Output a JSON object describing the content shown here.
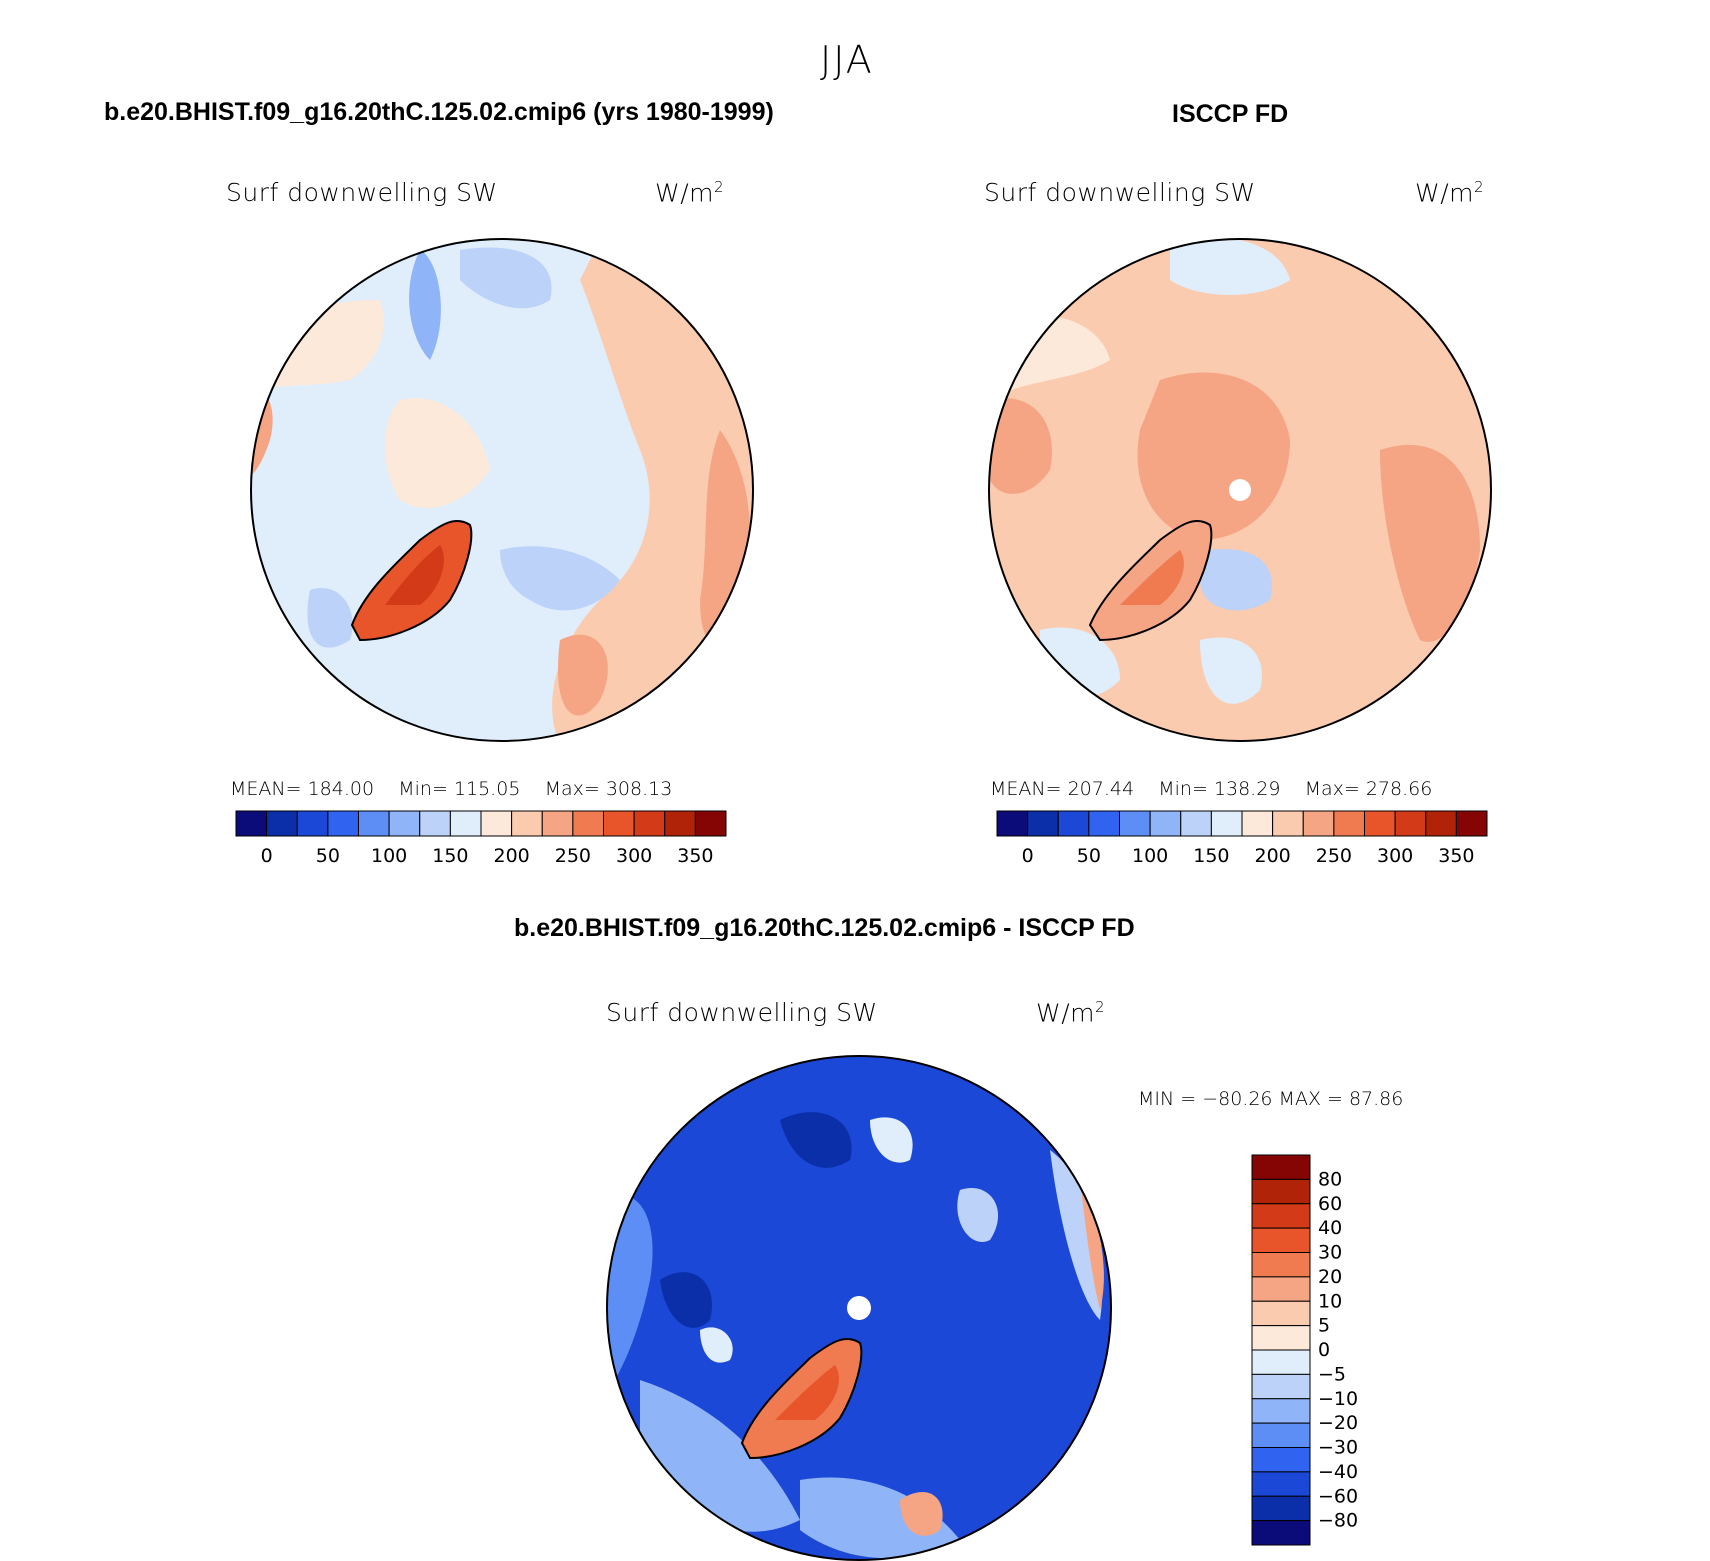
{
  "figure": {
    "main_title": "JJA"
  },
  "chart_data": [
    {
      "type": "contour",
      "title": "b.e20.BHIST.f09_g16.20thC.125.02.cmip6 (yrs 1980-1999)",
      "variable": "Surf downwelling SW",
      "units": "W/m",
      "units_exp": "2",
      "stats": {
        "mean_label": "MEAN=",
        "mean": "184.00",
        "min_label": "Min=",
        "min": "115.05",
        "max_label": "Max=",
        "max": "308.13"
      },
      "levels": [
        "0",
        "50",
        "100",
        "150",
        "200",
        "250",
        "300",
        "350"
      ]
    },
    {
      "type": "contour",
      "title": "ISCCP FD",
      "variable": "Surf downwelling SW",
      "units": "W/m",
      "units_exp": "2",
      "stats": {
        "mean_label": "MEAN=",
        "mean": "207.44",
        "min_label": "Min=",
        "min": "138.29",
        "max_label": "Max=",
        "max": "278.66"
      },
      "levels": [
        "0",
        "50",
        "100",
        "150",
        "200",
        "250",
        "300",
        "350"
      ]
    },
    {
      "type": "contour",
      "title": "b.e20.BHIST.f09_g16.20thC.125.02.cmip6 - ISCCP FD",
      "variable": "Surf downwelling SW",
      "units": "W/m",
      "units_exp": "2",
      "minmax_label": "MIN = −80.26 MAX =  87.86",
      "levels": [
        "80",
        "60",
        "40",
        "30",
        "20",
        "10",
        "5",
        "0",
        "−5",
        "−10",
        "−20",
        "−30",
        "−40",
        "−60",
        "−80"
      ]
    }
  ],
  "colors": {
    "abs_scale": [
      "#0b0b7a",
      "#0a2fa8",
      "#1c48d8",
      "#2f63f0",
      "#5c8ef5",
      "#8fb4f7",
      "#bcd2f8",
      "#e0edfb",
      "#fde9da",
      "#fbcbb0",
      "#f5a584",
      "#f07b50",
      "#e8552b",
      "#d33a18",
      "#b02308",
      "#850505"
    ],
    "diff_scale": [
      "#850505",
      "#b02308",
      "#d33a18",
      "#e8552b",
      "#f07b50",
      "#f5a584",
      "#fbcbb0",
      "#fde9da",
      "#e0edfb",
      "#bcd2f8",
      "#8fb4f7",
      "#5c8ef5",
      "#2f63f0",
      "#1c48d8",
      "#0a2fa8",
      "#0b0b7a"
    ]
  }
}
